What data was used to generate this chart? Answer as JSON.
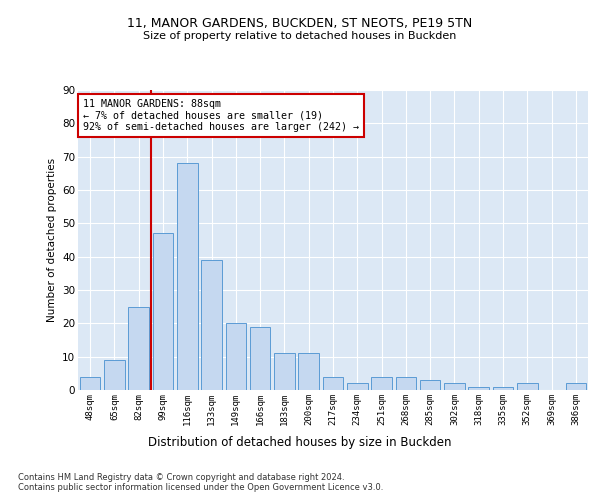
{
  "title1": "11, MANOR GARDENS, BUCKDEN, ST NEOTS, PE19 5TN",
  "title2": "Size of property relative to detached houses in Buckden",
  "xlabel": "Distribution of detached houses by size in Buckden",
  "ylabel": "Number of detached properties",
  "bar_labels": [
    "48sqm",
    "65sqm",
    "82sqm",
    "99sqm",
    "116sqm",
    "133sqm",
    "149sqm",
    "166sqm",
    "183sqm",
    "200sqm",
    "217sqm",
    "234sqm",
    "251sqm",
    "268sqm",
    "285sqm",
    "302sqm",
    "318sqm",
    "335sqm",
    "352sqm",
    "369sqm",
    "386sqm"
  ],
  "bar_values": [
    4,
    9,
    25,
    47,
    68,
    39,
    20,
    19,
    11,
    11,
    4,
    2,
    4,
    4,
    3,
    2,
    1,
    1,
    2,
    0,
    2
  ],
  "bar_color": "#c5d8f0",
  "bar_edge_color": "#5b9bd5",
  "vline_x_idx": 2,
  "vline_color": "#cc0000",
  "annotation_text": "11 MANOR GARDENS: 88sqm\n← 7% of detached houses are smaller (19)\n92% of semi-detached houses are larger (242) →",
  "annotation_box_color": "#ffffff",
  "annotation_box_edge_color": "#cc0000",
  "footnote1": "Contains HM Land Registry data © Crown copyright and database right 2024.",
  "footnote2": "Contains public sector information licensed under the Open Government Licence v3.0.",
  "bg_color": "#dce8f5",
  "ylim": [
    0,
    90
  ],
  "yticks": [
    0,
    10,
    20,
    30,
    40,
    50,
    60,
    70,
    80,
    90
  ]
}
